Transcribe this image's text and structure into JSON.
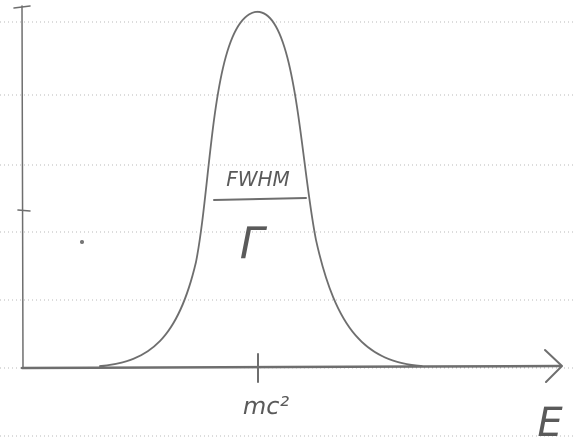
{
  "labels": {
    "fwhm": "FWHM",
    "gamma": "Γ",
    "center": "mc²",
    "axis": "E"
  }
}
